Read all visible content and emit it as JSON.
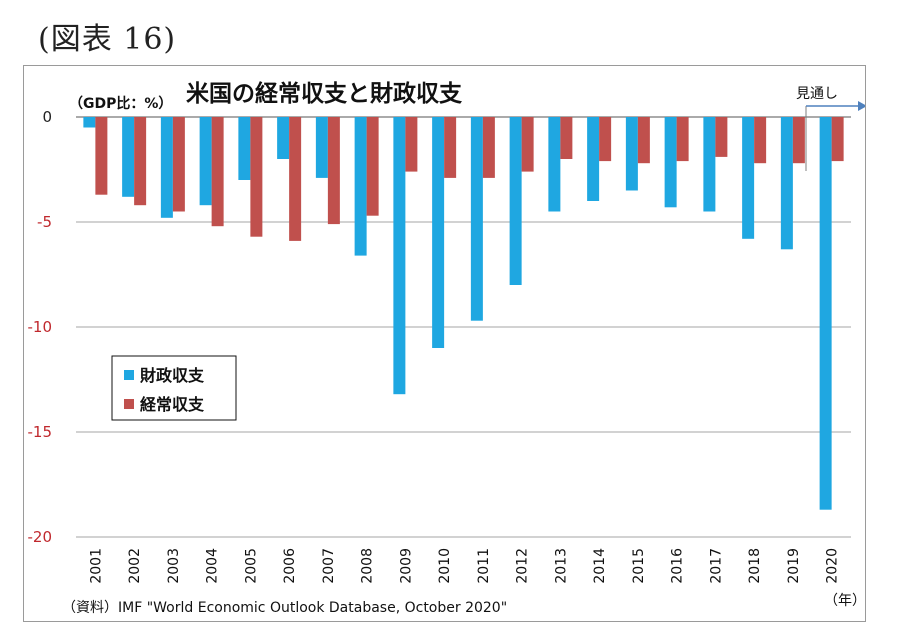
{
  "figure_label": "(図表 16)",
  "chart_data": {
    "type": "bar",
    "title": "米国の経常収支と財政収支",
    "ylabel": "（GDP比：%）",
    "xlabel": "（年）",
    "ylim": [
      -20,
      0
    ],
    "yticks": [
      0,
      -5,
      -10,
      -15,
      -20
    ],
    "grid": true,
    "legend_position": "left-middle",
    "categories": [
      "2001",
      "2002",
      "2003",
      "2004",
      "2005",
      "2006",
      "2007",
      "2008",
      "2009",
      "2010",
      "2011",
      "2012",
      "2013",
      "2014",
      "2015",
      "2016",
      "2017",
      "2018",
      "2019",
      "2020"
    ],
    "series": [
      {
        "name": "財政収支",
        "color": "#1fa7e1",
        "values": [
          -0.5,
          -3.8,
          -4.8,
          -4.2,
          -3.0,
          -2.0,
          -2.9,
          -6.6,
          -13.2,
          -11.0,
          -9.7,
          -8.0,
          -4.5,
          -4.0,
          -3.5,
          -4.3,
          -4.5,
          -5.8,
          -6.3,
          -18.7
        ]
      },
      {
        "name": "経常収支",
        "color": "#c0504d",
        "values": [
          -3.7,
          -4.2,
          -4.5,
          -5.2,
          -5.7,
          -5.9,
          -5.1,
          -4.7,
          -2.6,
          -2.9,
          -2.9,
          -2.6,
          -2.0,
          -2.1,
          -2.2,
          -2.1,
          -1.9,
          -2.2,
          -2.2,
          -2.1
        ]
      }
    ],
    "annotation": "見通し",
    "source": "（資料）IMF \"World Economic Outlook Database, October 2020\""
  }
}
